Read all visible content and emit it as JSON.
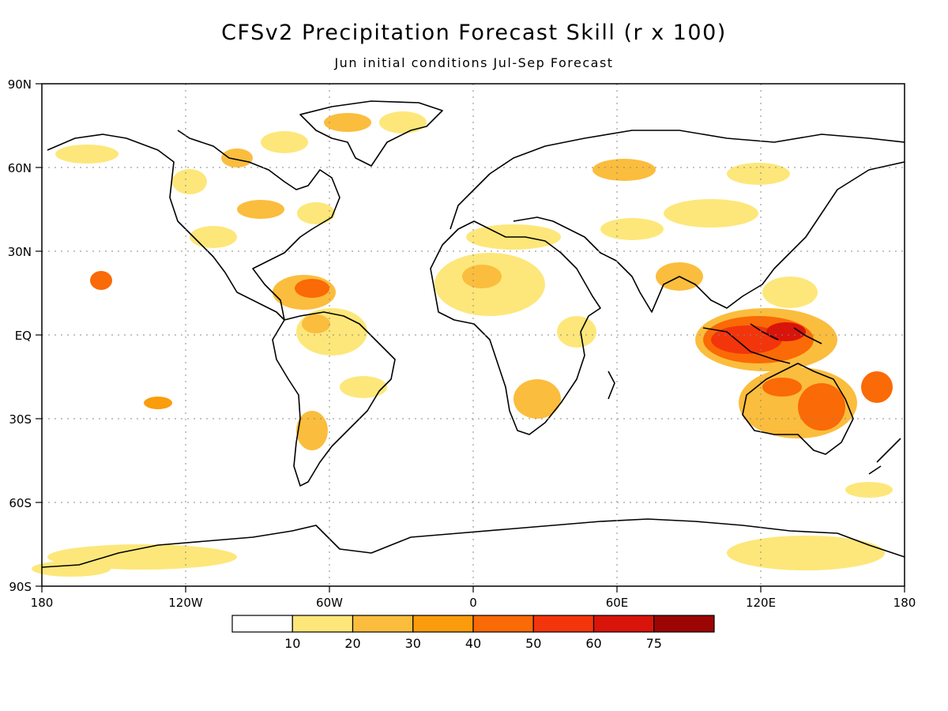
{
  "title": "CFSv2 Precipitation Forecast Skill (r x 100)",
  "subtitle": "Jun initial conditions   Jul-Sep Forecast",
  "lat_labels": [
    "90N",
    "60N",
    "30N",
    "EQ",
    "30S",
    "60S",
    "90S"
  ],
  "lon_labels": [
    "180",
    "120W",
    "60W",
    "0",
    "60E",
    "120E",
    "180"
  ],
  "colorbar": {
    "colors": [
      "#ffffff",
      "#fde77a",
      "#fbbd3d",
      "#fb9c0c",
      "#fa6a06",
      "#f3350b",
      "#d8140b",
      "#9c0503"
    ],
    "labels": [
      "10",
      "20",
      "30",
      "40",
      "50",
      "60",
      "75"
    ]
  }
}
